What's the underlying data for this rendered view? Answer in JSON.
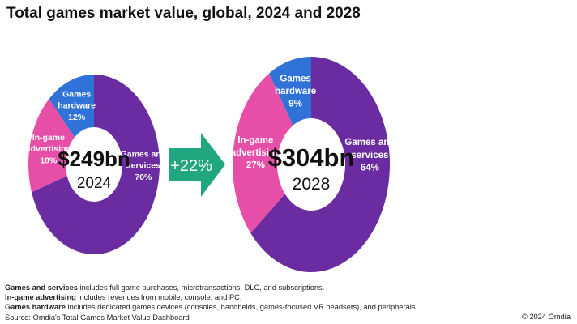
{
  "chart_data": {
    "type": "pie",
    "title": "Total games market value, global, 2024 and 2028",
    "colors": {
      "Games and services": "#6a2ca0",
      "In-game advertising": "#e64ea8",
      "Games hardware": "#2f72d8",
      "arrow": "#21a67f"
    },
    "charts": [
      {
        "year": "2024",
        "total": "$249bn",
        "slices": [
          {
            "name": "Games and services",
            "label": [
              "Games and",
              "services"
            ],
            "value": 70,
            "value_label": "70%"
          },
          {
            "name": "In-game advertising",
            "label": [
              "In-game",
              "advertising"
            ],
            "value": 18,
            "value_label": "18%"
          },
          {
            "name": "Games hardware",
            "label": [
              "Games",
              "hardware"
            ],
            "value": 12,
            "value_label": "12%"
          }
        ]
      },
      {
        "year": "2028",
        "total": "$304bn",
        "slices": [
          {
            "name": "Games and services",
            "label": [
              "Games and",
              "services"
            ],
            "value": 64,
            "value_label": "64%"
          },
          {
            "name": "In-game advertising",
            "label": [
              "In-game",
              "advertising"
            ],
            "value": 27,
            "value_label": "27%"
          },
          {
            "name": "Games hardware",
            "label": [
              "Games",
              "hardware"
            ],
            "value": 9,
            "value_label": "9%"
          }
        ]
      }
    ],
    "growth": "+22%"
  },
  "notes": [
    {
      "term": "Games and services",
      "text": " includes full game purchases, microtransactions, DLC, and subscriptions."
    },
    {
      "term": "In-game advertising",
      "text": " includes revenues from mobile, console, and PC."
    },
    {
      "term": "Games hardware",
      "text": " includes dedicated games devices (consoles, handhelds, games-focused VR headsets), and peripherals."
    }
  ],
  "source": "Source: Omdia's Total Games Market Value Dashboard",
  "copyright": "© 2024 Omdia"
}
